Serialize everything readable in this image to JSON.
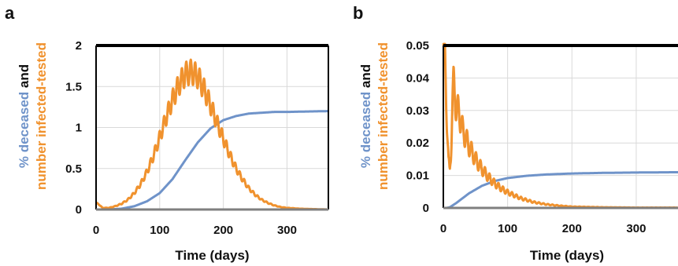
{
  "colors": {
    "deceased": "#6f93c9",
    "infected": "#f0922e",
    "dark": "#111111"
  },
  "chart_data": [
    {
      "panel": "a",
      "type": "line",
      "xlabel": "Time (days)",
      "ylabel_parts": [
        "% deceased",
        "and",
        "number  infected-tested"
      ],
      "xlim": [
        0,
        365
      ],
      "ylim": [
        0,
        2
      ],
      "xticks": [
        0,
        100,
        200,
        300
      ],
      "yticks": [
        0,
        0.5,
        1,
        1.5,
        2
      ],
      "ytick_labels": [
        "0",
        "0.5",
        "1",
        "1.5",
        "2"
      ],
      "grid": true,
      "series": [
        {
          "name": "% deceased",
          "color_key": "deceased",
          "x": [
            0,
            20,
            40,
            60,
            80,
            100,
            120,
            140,
            160,
            180,
            200,
            220,
            240,
            260,
            280,
            300,
            330,
            365
          ],
          "y": [
            0,
            0,
            0.01,
            0.04,
            0.1,
            0.2,
            0.37,
            0.6,
            0.82,
            0.99,
            1.09,
            1.14,
            1.17,
            1.18,
            1.19,
            1.19,
            1.195,
            1.2
          ]
        },
        {
          "name": "number infected-tested",
          "color_key": "infected",
          "x": [
            0,
            5,
            10,
            20,
            30,
            40,
            50,
            60,
            70,
            80,
            90,
            100,
            110,
            120,
            130,
            140,
            150,
            160,
            170,
            180,
            190,
            200,
            210,
            220,
            230,
            240,
            250,
            260,
            270,
            280,
            290,
            300,
            320,
            340,
            365
          ],
          "y": [
            0.08,
            0.06,
            0.02,
            0.02,
            0.04,
            0.07,
            0.12,
            0.2,
            0.31,
            0.46,
            0.65,
            0.88,
            1.12,
            1.34,
            1.52,
            1.65,
            1.68,
            1.62,
            1.46,
            1.27,
            1.06,
            0.86,
            0.67,
            0.5,
            0.37,
            0.26,
            0.18,
            0.12,
            0.08,
            0.05,
            0.03,
            0.02,
            0.01,
            0.005,
            0
          ]
        }
      ]
    },
    {
      "panel": "b",
      "type": "line",
      "xlabel": "Time (days)",
      "ylabel_parts": [
        "% deceased",
        "and",
        "number infected-tested"
      ],
      "xlim": [
        0,
        365
      ],
      "ylim": [
        0,
        0.05
      ],
      "xticks": [
        0,
        100,
        200,
        300
      ],
      "yticks": [
        0,
        0.01,
        0.02,
        0.03,
        0.04,
        0.05
      ],
      "ytick_labels": [
        "0",
        "0.01",
        "0.02",
        "0.03",
        "0.04",
        "0.05"
      ],
      "grid": true,
      "series": [
        {
          "name": "% deceased",
          "color_key": "deceased",
          "x": [
            0,
            5,
            10,
            20,
            40,
            60,
            80,
            100,
            130,
            160,
            200,
            250,
            300,
            365
          ],
          "y": [
            0,
            0,
            0.0002,
            0.0015,
            0.0045,
            0.0068,
            0.0083,
            0.0092,
            0.0099,
            0.0103,
            0.0106,
            0.0108,
            0.0109,
            0.011
          ]
        },
        {
          "name": "number infected-tested",
          "color_key": "infected",
          "x": [
            0,
            2,
            4,
            6,
            8,
            10,
            12,
            14,
            16,
            18,
            20,
            25,
            30,
            40,
            50,
            60,
            70,
            80,
            90,
            100,
            120,
            140,
            160,
            180,
            200,
            250,
            300,
            365
          ],
          "y": [
            0.05,
            0.048,
            0.038,
            0.025,
            0.014,
            0.011,
            0.018,
            0.032,
            0.038,
            0.035,
            0.031,
            0.029,
            0.024,
            0.019,
            0.015,
            0.012,
            0.0095,
            0.0075,
            0.006,
            0.0048,
            0.003,
            0.0018,
            0.0011,
            0.0007,
            0.0004,
            0.0002,
            0.0001,
            0.0001
          ]
        }
      ]
    }
  ]
}
